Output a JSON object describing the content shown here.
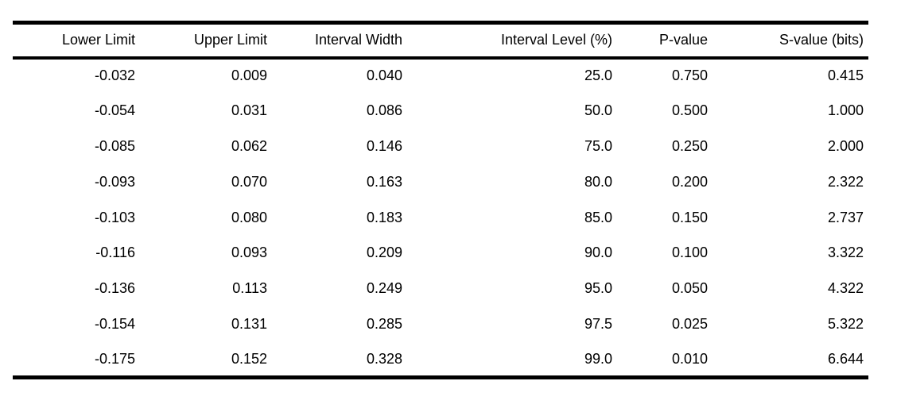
{
  "chart_data": {
    "type": "table",
    "title": "",
    "columns": [
      "Lower Limit",
      "Upper Limit",
      "Interval Width",
      "Interval Level (%)",
      "P-value",
      "S-value (bits)"
    ],
    "rows": [
      [
        "-0.032",
        "0.009",
        "0.040",
        "25.0",
        "0.750",
        "0.415"
      ],
      [
        "-0.054",
        "0.031",
        "0.086",
        "50.0",
        "0.500",
        "1.000"
      ],
      [
        "-0.085",
        "0.062",
        "0.146",
        "75.0",
        "0.250",
        "2.000"
      ],
      [
        "-0.093",
        "0.070",
        "0.163",
        "80.0",
        "0.200",
        "2.322"
      ],
      [
        "-0.103",
        "0.080",
        "0.183",
        "85.0",
        "0.150",
        "2.737"
      ],
      [
        "-0.116",
        "0.093",
        "0.209",
        "90.0",
        "0.100",
        "3.322"
      ],
      [
        "-0.136",
        "0.113",
        "0.249",
        "95.0",
        "0.050",
        "4.322"
      ],
      [
        "-0.154",
        "0.131",
        "0.285",
        "97.5",
        "0.025",
        "5.322"
      ],
      [
        "-0.175",
        "0.152",
        "0.328",
        "99.0",
        "0.010",
        "6.644"
      ]
    ]
  },
  "colors": {
    "text": "#000000",
    "background": "#ffffff",
    "rule": "#000000"
  }
}
